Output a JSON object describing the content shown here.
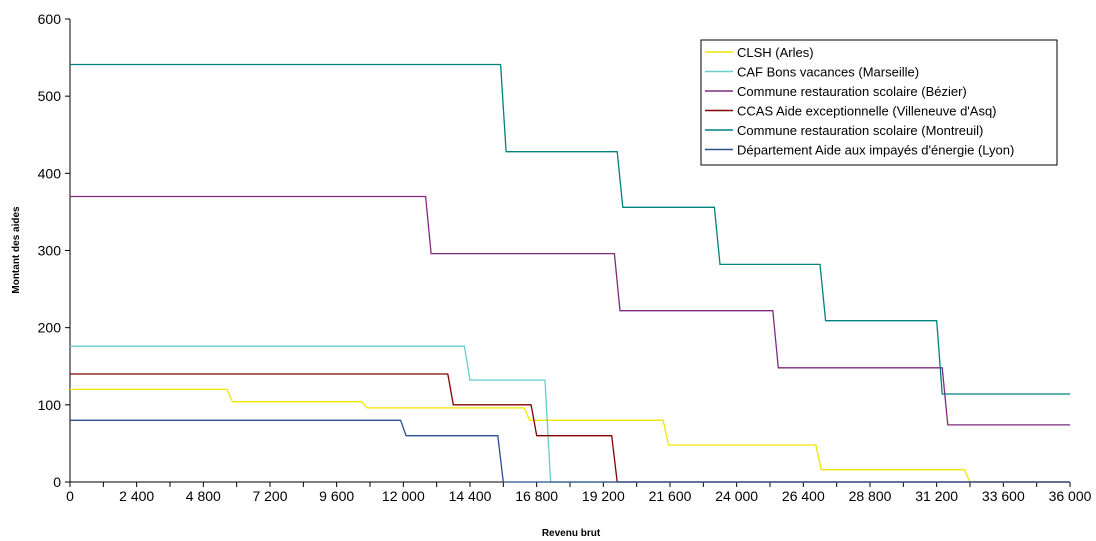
{
  "chart_data": {
    "type": "line",
    "xlabel": "Revenu brut",
    "ylabel": "Montant des aides",
    "xlim": [
      0,
      36000
    ],
    "ylim": [
      0,
      600
    ],
    "x_ticks": [
      0,
      2400,
      4800,
      7200,
      9600,
      12000,
      14400,
      16800,
      19200,
      21600,
      24000,
      26400,
      28800,
      31200,
      33600,
      36000
    ],
    "x_tick_labels": [
      "0",
      "2 400",
      "4 800",
      "7 200",
      "9 600",
      "12 000",
      "14 400",
      "16 800",
      "19 200",
      "21 600",
      "24 000",
      "26 400",
      "28 800",
      "31 200",
      "33 600",
      "36 000"
    ],
    "y_ticks": [
      0,
      100,
      200,
      300,
      400,
      500,
      600
    ],
    "y_tick_labels": [
      "0",
      "100",
      "200",
      "300",
      "400",
      "500",
      "600"
    ],
    "grid": false,
    "legend_position": "top-right",
    "series": [
      {
        "name": "CLSH (Arles)",
        "color": "#f2e600",
        "points": [
          [
            0,
            120
          ],
          [
            5650,
            120
          ],
          [
            5850,
            104
          ],
          [
            10500,
            104
          ],
          [
            10700,
            96
          ],
          [
            16350,
            96
          ],
          [
            16550,
            80
          ],
          [
            21350,
            80
          ],
          [
            21550,
            48
          ],
          [
            26850,
            48
          ],
          [
            27050,
            16
          ],
          [
            32200,
            16
          ],
          [
            32400,
            0
          ],
          [
            36000,
            0
          ]
        ]
      },
      {
        "name": "CAF Bons vacances (Marseille)",
        "color": "#66cccc",
        "points": [
          [
            0,
            176
          ],
          [
            14200,
            176
          ],
          [
            14400,
            132
          ],
          [
            17100,
            132
          ],
          [
            17300,
            0
          ],
          [
            36000,
            0
          ]
        ]
      },
      {
        "name": "Commune restauration scolaire (Bézier)",
        "color": "#7f2a7f",
        "points": [
          [
            0,
            370
          ],
          [
            12800,
            370
          ],
          [
            13000,
            296
          ],
          [
            19600,
            296
          ],
          [
            19800,
            222
          ],
          [
            25300,
            222
          ],
          [
            25500,
            148
          ],
          [
            31400,
            148
          ],
          [
            31600,
            74
          ],
          [
            36000,
            74
          ]
        ]
      },
      {
        "name": "CCAS Aide exceptionnelle (Villeneuve d'Asq)",
        "color": "#800000",
        "points": [
          [
            0,
            140
          ],
          [
            13600,
            140
          ],
          [
            13800,
            100
          ],
          [
            16600,
            100
          ],
          [
            16800,
            60
          ],
          [
            19500,
            60
          ],
          [
            19700,
            0
          ],
          [
            36000,
            0
          ]
        ]
      },
      {
        "name": "Commune restauration scolaire (Montreuil)",
        "color": "#008080",
        "points": [
          [
            0,
            541
          ],
          [
            15500,
            541
          ],
          [
            15700,
            428
          ],
          [
            19700,
            428
          ],
          [
            19900,
            356
          ],
          [
            23200,
            356
          ],
          [
            23400,
            282
          ],
          [
            27000,
            282
          ],
          [
            27200,
            209
          ],
          [
            31200,
            209
          ],
          [
            31400,
            114
          ],
          [
            36000,
            114
          ]
        ]
      },
      {
        "name": "Département Aide aux impayés d'énergie (Lyon)",
        "color": "#2a4d8f",
        "points": [
          [
            0,
            80
          ],
          [
            11900,
            80
          ],
          [
            12100,
            60
          ],
          [
            15400,
            60
          ],
          [
            15600,
            0
          ],
          [
            36000,
            0
          ]
        ]
      }
    ]
  }
}
